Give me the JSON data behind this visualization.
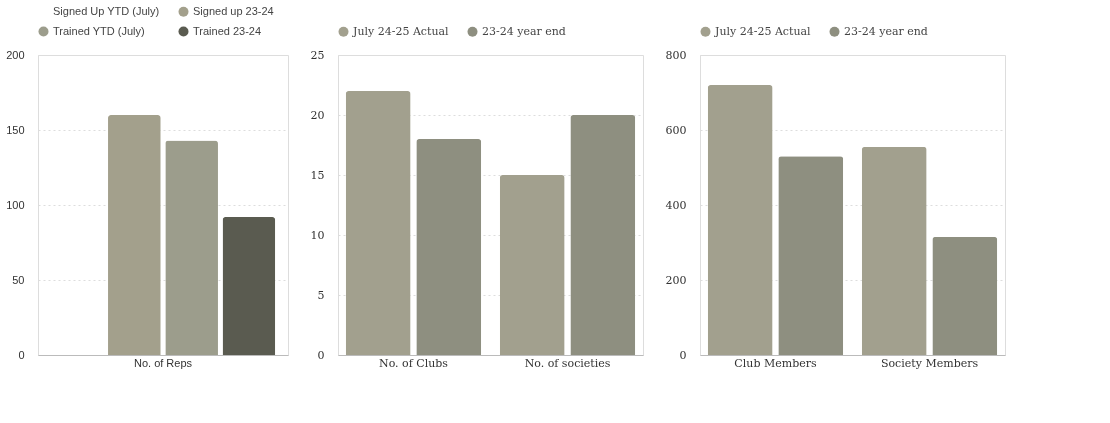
{
  "chart_data": [
    {
      "type": "bar",
      "categories": [
        "No. of Reps"
      ],
      "ylim": [
        0,
        200
      ],
      "yticks": [
        0,
        50,
        100,
        150,
        200
      ],
      "grid": "y",
      "legend": "top",
      "series": [
        {
          "name": "Signed Up YTD (July)",
          "values": [
            null
          ]
        },
        {
          "name": "Signed up 23-24",
          "color": "#a3a08c",
          "values": [
            160
          ]
        },
        {
          "name": "Trained YTD (July)",
          "color": "#9c9d8c",
          "values": [
            143
          ]
        },
        {
          "name": "Trained 23-24",
          "color": "#5a5b50",
          "values": [
            92
          ]
        }
      ]
    },
    {
      "type": "bar",
      "categories": [
        "No. of Clubs",
        "No. of societies"
      ],
      "ylim": [
        0,
        25
      ],
      "yticks": [
        0,
        5,
        10,
        15,
        20,
        25
      ],
      "grid": "y",
      "legend": "top",
      "series": [
        {
          "name": "July 24-25 Actual",
          "color": "#a2a08e",
          "values": [
            22,
            15
          ]
        },
        {
          "name": "23-24 year end",
          "color": "#8e8f80",
          "values": [
            18,
            20
          ]
        }
      ]
    },
    {
      "type": "bar",
      "categories": [
        "Club Members",
        "Society Members"
      ],
      "ylim": [
        0,
        800
      ],
      "yticks": [
        0,
        200,
        400,
        600,
        800
      ],
      "grid": "y",
      "legend": "top",
      "series": [
        {
          "name": "July 24-25 Actual",
          "color": "#a2a08e",
          "values": [
            720,
            555
          ]
        },
        {
          "name": "23-24 year end",
          "color": "#8e8f80",
          "values": [
            530,
            315
          ]
        }
      ]
    }
  ]
}
